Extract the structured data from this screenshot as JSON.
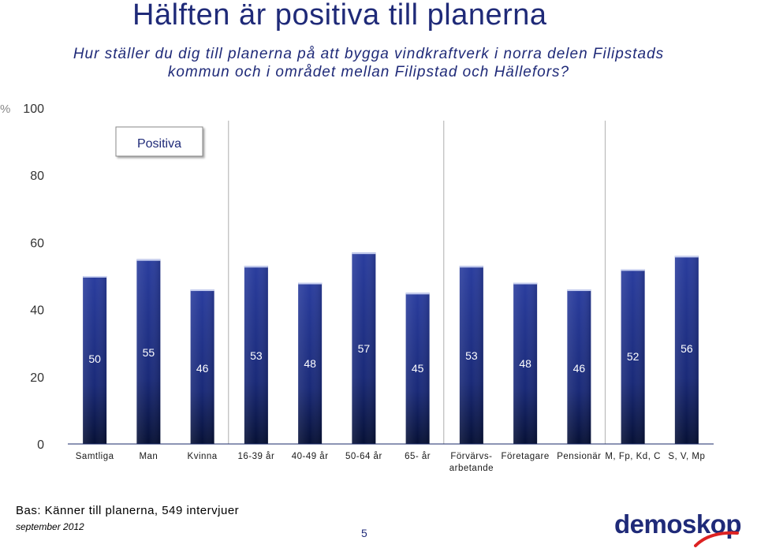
{
  "header": {
    "title": "Hälften är positiva till planerna",
    "subtitle_line1": "Hur ställer du dig till planerna på att bygga vindkraftverk i norra delen Filipstads",
    "subtitle_line2": "kommun  och i området mellan Filipstad och Hällefors?"
  },
  "chart_data": {
    "type": "bar",
    "categories": [
      "Samtliga",
      "Man",
      "Kvinna",
      "16-39 år",
      "40-49 år",
      "50-64 år",
      "65- år",
      "Förvärvs-\narbetande",
      "Företagare",
      "Pensionär",
      "M, Fp, Kd, C",
      "S, V, Mp"
    ],
    "values": [
      50,
      55,
      46,
      53,
      48,
      57,
      45,
      53,
      48,
      46,
      52,
      56
    ],
    "ylabel": "%",
    "ylim": [
      0,
      100
    ],
    "yticks": [
      0,
      20,
      40,
      60,
      80,
      100
    ],
    "legend": "Positiva",
    "legend_position": "top-left",
    "grid": false,
    "group_separators": true,
    "colors": {
      "bar_top": "#2a3d9e",
      "bar_bottom": "#061035",
      "text": "#1f2a78"
    }
  },
  "footer": {
    "basis": "Bas: Känner till planerna, 549 intervjuer",
    "date": "september 2012",
    "page": "5",
    "logo": "demoskop"
  }
}
